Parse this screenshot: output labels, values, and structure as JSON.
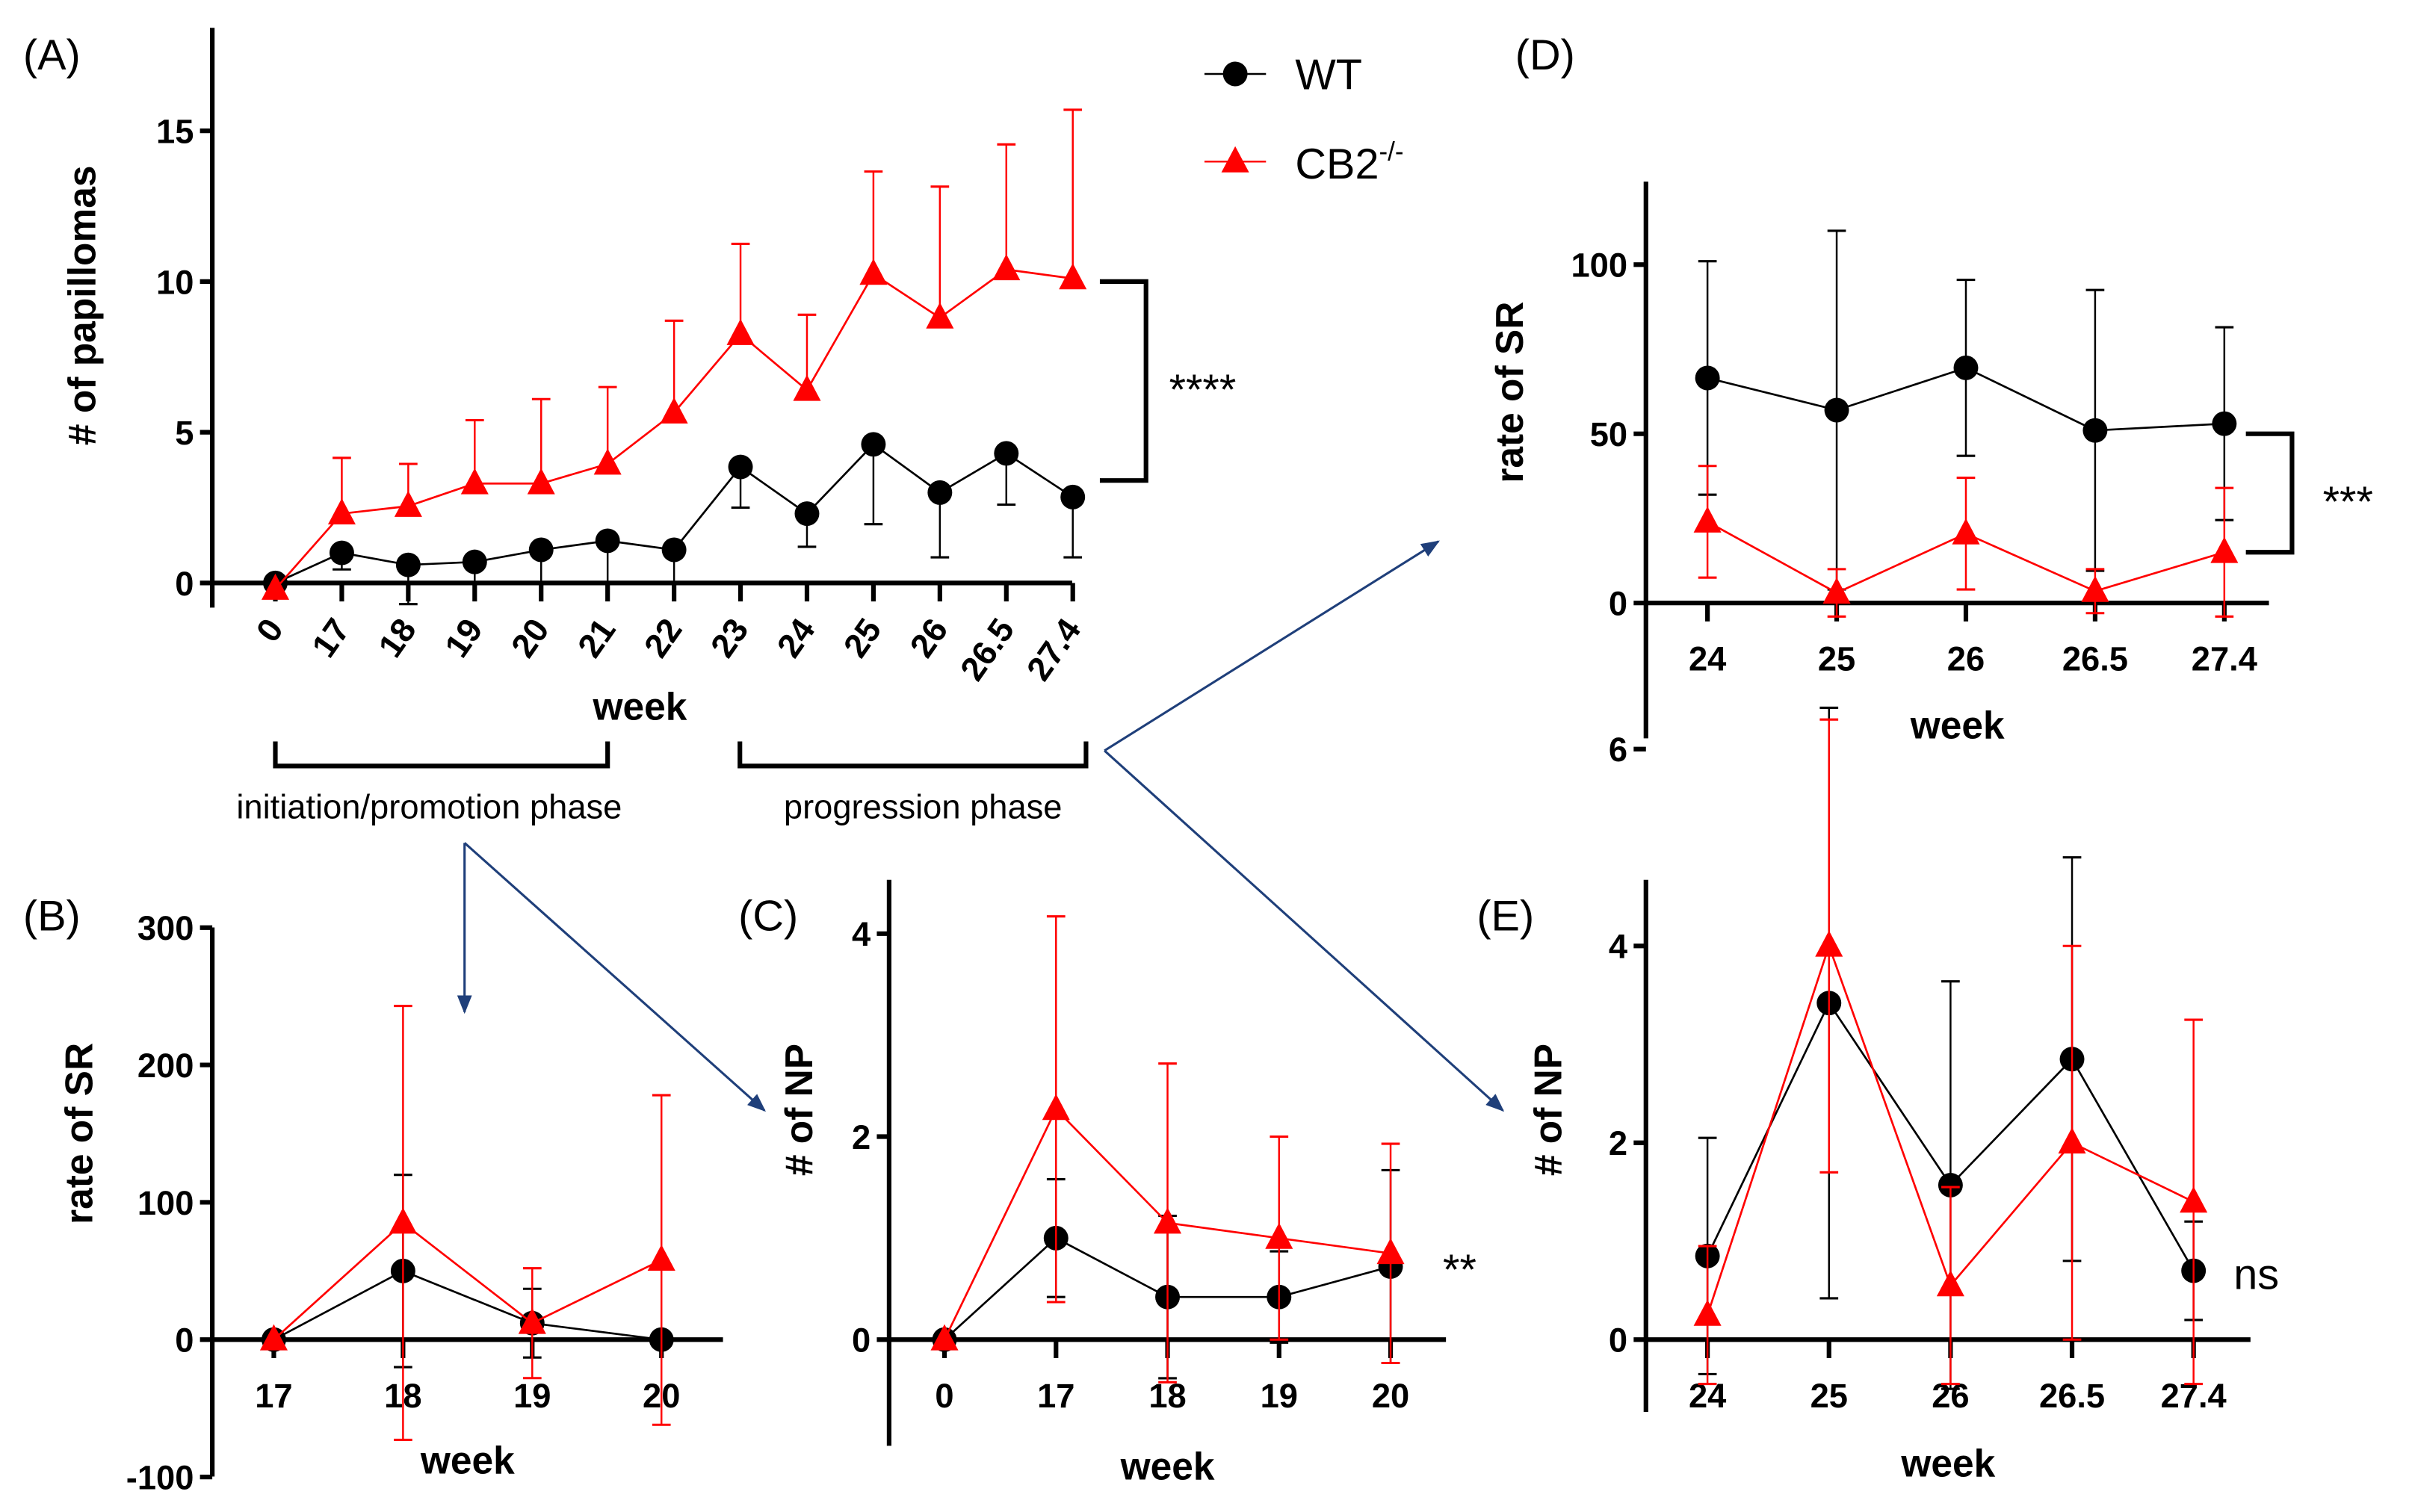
{
  "legend": {
    "wt": "WT",
    "cb2": "CB2",
    "cb2_sup": "-/-"
  },
  "colors": {
    "wt": "#000000",
    "cb2": "#ff0000",
    "arrow": "#1f3f7a"
  },
  "phases": {
    "initiation": "initiation/promotion phase",
    "progression": "progression phase"
  },
  "chart_data": [
    {
      "id": "A",
      "label": "(A)",
      "type": "line",
      "xlabel": "week",
      "ylabel": "# of papillomas",
      "categories": [
        "0",
        "17",
        "18",
        "19",
        "20",
        "21",
        "22",
        "23",
        "24",
        "25",
        "26",
        "26.5",
        "27.4"
      ],
      "yticks": [
        "0",
        "5",
        "10",
        "15"
      ],
      "ylim": [
        0,
        17.5
      ],
      "series": [
        {
          "name": "WT",
          "values": [
            0,
            1.0,
            0.6,
            0.7,
            1.1,
            1.4,
            1.1,
            3.85,
            2.3,
            4.6,
            3.0,
            4.3,
            2.85
          ],
          "error": [
            0,
            0.55,
            1.3,
            0.7,
            1.1,
            1.4,
            1.1,
            1.35,
            1.1,
            2.65,
            2.15,
            1.7,
            2.0
          ]
        },
        {
          "name": "CB2-/-",
          "values": [
            -0.2,
            2.3,
            2.55,
            3.3,
            3.3,
            3.95,
            5.65,
            8.25,
            6.4,
            10.25,
            8.8,
            10.4,
            10.1
          ],
          "error": [
            0,
            1.85,
            1.4,
            2.1,
            2.8,
            2.55,
            3.05,
            3.0,
            2.5,
            3.4,
            4.35,
            4.15,
            5.6
          ]
        }
      ],
      "significance": "****"
    },
    {
      "id": "B",
      "label": "(B)",
      "type": "line",
      "xlabel": "week",
      "ylabel": "rate of SR",
      "categories": [
        "17",
        "18",
        "19",
        "20"
      ],
      "yticks": [
        "-100",
        "0",
        "100",
        "200",
        "300"
      ],
      "ylim": [
        -100,
        300
      ],
      "series": [
        {
          "name": "WT",
          "values": [
            0,
            50,
            12,
            0
          ],
          "error": [
            0,
            70,
            25,
            0
          ]
        },
        {
          "name": "CB2-/-",
          "values": [
            0,
            85,
            12,
            58
          ],
          "error": [
            0,
            158,
            40,
            120
          ]
        }
      ],
      "significance": ""
    },
    {
      "id": "C",
      "label": "(C)",
      "type": "line",
      "xlabel": "week",
      "ylabel": "# of NP",
      "categories": [
        "0",
        "17",
        "18",
        "19",
        "20"
      ],
      "yticks": [
        "0",
        "2",
        "4"
      ],
      "ylim": [
        -1,
        4.5
      ],
      "series": [
        {
          "name": "WT",
          "values": [
            0,
            1.0,
            0.42,
            0.42,
            0.72
          ],
          "error": [
            0,
            0.58,
            0.8,
            0.45,
            0.95
          ]
        },
        {
          "name": "CB2-/-",
          "values": [
            0,
            2.27,
            1.15,
            1.0,
            0.85
          ],
          "error": [
            0,
            1.9,
            1.57,
            1.0,
            1.08
          ]
        }
      ],
      "significance": "**"
    },
    {
      "id": "D",
      "label": "(D)",
      "type": "line",
      "xlabel": "week",
      "ylabel": "rate of SR",
      "categories": [
        "24",
        "25",
        "26",
        "26.5",
        "27.4"
      ],
      "yticks": [
        "0",
        "50",
        "100"
      ],
      "ylim": [
        -40,
        125
      ],
      "series": [
        {
          "name": "WT",
          "values": [
            66.5,
            57,
            69.5,
            51,
            53
          ],
          "error": [
            34.5,
            53,
            26,
            41.5,
            28.5
          ]
        },
        {
          "name": "CB2-/-",
          "values": [
            24,
            3,
            20.5,
            3.5,
            15
          ],
          "error": [
            16.5,
            7,
            16.5,
            6.5,
            19
          ]
        }
      ],
      "significance": "***"
    },
    {
      "id": "E",
      "label": "(E)",
      "type": "line",
      "xlabel": "week",
      "ylabel": "# of NP",
      "categories": [
        "24",
        "25",
        "26",
        "26.5",
        "27.4"
      ],
      "yticks": [
        "0",
        "2",
        "4",
        "6"
      ],
      "ylim": [
        -0.6,
        7
      ],
      "series": [
        {
          "name": "WT",
          "values": [
            0.85,
            3.42,
            1.57,
            2.85,
            0.7
          ],
          "error": [
            1.2,
            3.0,
            2.07,
            2.05,
            0.5
          ]
        },
        {
          "name": "CB2-/-",
          "values": [
            0.25,
            4.0,
            0.55,
            2.0,
            1.4
          ],
          "error": [
            0.7,
            2.3,
            1.0,
            2.0,
            1.85
          ]
        }
      ],
      "significance": "ns"
    }
  ]
}
